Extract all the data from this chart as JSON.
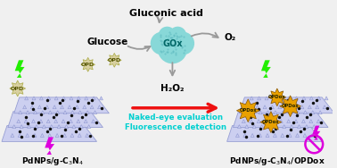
{
  "bg_color": "#f0f0f0",
  "title_top": "Gluconic acid",
  "gox_label": "GOx",
  "o2_label": "O₂",
  "h2o2_label": "H₂O₂",
  "glucose_label": "Glucose",
  "opd_label": "OPD",
  "opdox_label": "OPDox",
  "left_label": "PdNPs/g-C$_3$N$_4$",
  "right_label": "PdNPs/g-C$_3$N$_4$/OPDox",
  "naked_eye_text": "Naked-eye evaluation",
  "fluorescence_text": "Fluorescence detection",
  "sheet_color": "#c8ccf0",
  "sheet_edge_color": "#9098d0",
  "dot_color": "#111111",
  "opdox_color": "#e8a000",
  "gox_cloud_color": "#88d8d8",
  "arrow_red": "#ee1111",
  "arrow_gray": "#999999",
  "text_cyan": "#00d0d0",
  "green_bolt": "#22ee00",
  "magenta_bolt": "#dd00dd",
  "opd_star_color": "#d8d0a0",
  "opd_star_edge": "#aaaa44"
}
